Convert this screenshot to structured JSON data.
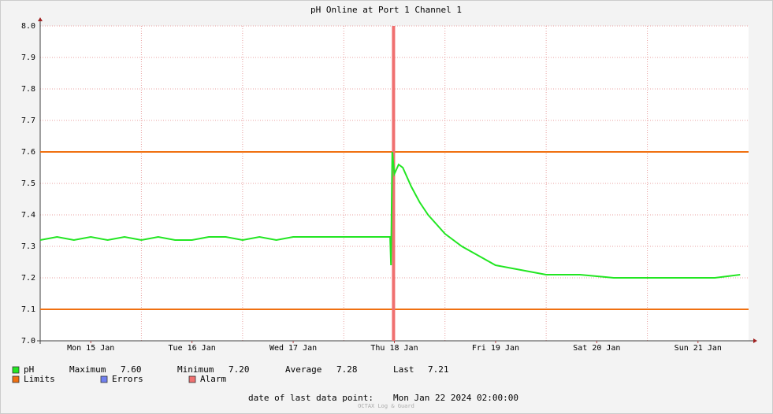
{
  "chart_data": {
    "type": "line",
    "title": "pH Online at Port 1 Channel 1",
    "xlim": [
      0,
      168
    ],
    "xticks": [
      {
        "value": 12,
        "label": "Mon 15 Jan"
      },
      {
        "value": 36,
        "label": "Tue 16 Jan"
      },
      {
        "value": 60,
        "label": "Wed 17 Jan"
      },
      {
        "value": 84,
        "label": "Thu 18 Jan"
      },
      {
        "value": 108,
        "label": "Fri 19 Jan"
      },
      {
        "value": 132,
        "label": "Sat 20 Jan"
      },
      {
        "value": 156,
        "label": "Sun 21 Jan"
      }
    ],
    "ylim": [
      7.0,
      8.0
    ],
    "yticks": [
      {
        "value": 7.0,
        "label": "7.0"
      },
      7.1,
      7.2,
      7.3,
      7.4,
      7.5,
      7.6,
      7.7,
      7.8,
      7.9,
      {
        "value": 8.0,
        "label": "8.0"
      }
    ],
    "grid": true,
    "x": [
      0,
      4,
      8,
      12,
      16,
      20,
      24,
      28,
      32,
      36,
      40,
      44,
      48,
      52,
      56,
      60,
      64,
      68,
      72,
      76,
      80,
      83,
      83.2,
      83.5,
      84,
      85,
      86,
      88,
      90,
      92,
      94,
      96,
      100,
      104,
      108,
      112,
      116,
      120,
      128,
      136,
      144,
      152,
      160,
      166
    ],
    "series": [
      {
        "name": "pH",
        "color": "#22e622",
        "values": [
          7.32,
          7.33,
          7.32,
          7.33,
          7.32,
          7.33,
          7.32,
          7.33,
          7.32,
          7.32,
          7.33,
          7.33,
          7.32,
          7.33,
          7.32,
          7.33,
          7.33,
          7.33,
          7.33,
          7.33,
          7.33,
          7.33,
          7.24,
          7.6,
          7.53,
          7.56,
          7.55,
          7.49,
          7.44,
          7.4,
          7.37,
          7.34,
          7.3,
          7.27,
          7.24,
          7.23,
          7.22,
          7.21,
          7.21,
          7.2,
          7.2,
          7.2,
          7.2,
          7.21
        ]
      }
    ],
    "limits": {
      "name": "Limits",
      "color": "#f07010",
      "values": [
        7.6,
        7.1
      ]
    },
    "errors": {
      "name": "Errors",
      "color": "#7080f0"
    },
    "alarm": {
      "name": "Alarm",
      "color": "#f07070",
      "x": [
        83.8
      ]
    },
    "stats": [
      {
        "label": "Maximum",
        "value": "7.60"
      },
      {
        "label": "Minimum",
        "value": "7.20"
      },
      {
        "label": "Average",
        "value": "7.28"
      },
      {
        "label": "Last",
        "value": "7.21"
      }
    ],
    "footer": {
      "label": "date of last data point:",
      "value": "Mon Jan 22 2024 02:00:00"
    },
    "watermark": "OCTAX Log & Guard"
  }
}
